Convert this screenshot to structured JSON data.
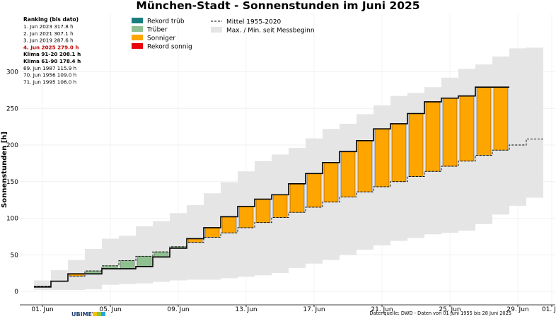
{
  "chart_data": {
    "type": "bar",
    "title": "München-Stadt - Sonnenstunden im Juni 2025",
    "ylabel": "Sonnenstunden [h]",
    "ylim": [
      -18,
      340
    ],
    "yticks": [
      0,
      50,
      100,
      150,
      200,
      250,
      300
    ],
    "xticks": [
      {
        "day": 1,
        "label": "01. Jun"
      },
      {
        "day": 5,
        "label": "05. Jun"
      },
      {
        "day": 9,
        "label": "09. Jun"
      },
      {
        "day": 13,
        "label": "13. Jun"
      },
      {
        "day": 17,
        "label": "17. Jun"
      },
      {
        "day": 21,
        "label": "21. Jun"
      },
      {
        "day": 25,
        "label": "25. Jun"
      },
      {
        "day": 29,
        "label": "29. Jun"
      },
      {
        "day": 31,
        "label": "01. Jul"
      }
    ],
    "days": [
      1,
      2,
      3,
      4,
      5,
      6,
      7,
      8,
      9,
      10,
      11,
      12,
      13,
      14,
      15,
      16,
      17,
      18,
      19,
      20,
      21,
      22,
      23,
      24,
      25,
      26,
      27,
      28,
      29,
      30
    ],
    "cumulative_2025": [
      6,
      14,
      24,
      24,
      31,
      31,
      34,
      47,
      59,
      72,
      87,
      102,
      116,
      126,
      132,
      147,
      161,
      176,
      191,
      206,
      222,
      229,
      243,
      259,
      264,
      267,
      279,
      279
    ],
    "mean_1955_2020": [
      7,
      14,
      21,
      28,
      35,
      42,
      48,
      54,
      61,
      67,
      74,
      80,
      87,
      94,
      101,
      108,
      115,
      122,
      129,
      136,
      143,
      150,
      157,
      164,
      171,
      178,
      186,
      193,
      200,
      208
    ],
    "max_since_start": [
      15,
      29,
      43,
      58,
      72,
      76,
      89,
      96,
      107,
      118,
      134,
      149,
      164,
      178,
      187,
      196,
      209,
      222,
      229,
      242,
      254,
      267,
      271,
      279,
      292,
      304,
      310,
      321,
      332,
      333
    ],
    "min_since_start": [
      2,
      2,
      2,
      3,
      9,
      10,
      11,
      13,
      15,
      16,
      16,
      18,
      20,
      22,
      25,
      32,
      38,
      43,
      50,
      57,
      63,
      69,
      73,
      78,
      80,
      83,
      92,
      105,
      117,
      128
    ],
    "legend": {
      "left": [
        {
          "label": "Rekord trüb",
          "color": "#1a7e7e"
        },
        {
          "label": "Trüber",
          "color": "#8fc08f"
        },
        {
          "label": "Sonniger",
          "color": "#ffa500"
        },
        {
          "label": "Rekord sonnig",
          "color": "#e8000b"
        }
      ],
      "right": [
        {
          "label": "Mittel 1955-2020",
          "style": "dashed"
        },
        {
          "label": "Max. / Min. seit Messbeginn",
          "color": "#e5e5e5"
        }
      ]
    },
    "ranking": {
      "heading": "Ranking (bis dato)",
      "entries": [
        {
          "text": "1.  Jun 2023  317.8 h",
          "style": "normal"
        },
        {
          "text": "2.  Jun 2021  307.1 h",
          "style": "normal"
        },
        {
          "text": "3.  Jun 2019  287.6 h",
          "style": "normal"
        },
        {
          "text": "4.  Jun 2025  279.0 h",
          "style": "highlight"
        },
        {
          "text": "Klima 91-20 208.1 h",
          "style": "bold"
        },
        {
          "text": "Klima 61-90 178.4 h",
          "style": "bold"
        },
        {
          "text": "69.  Jun 1987  115.9 h",
          "style": "normal"
        },
        {
          "text": "70.  Jun 1956  109.0 h",
          "style": "normal"
        },
        {
          "text": "71.  Jun 1995  106.0 h",
          "style": "normal"
        }
      ]
    },
    "colors": {
      "above_mean": "#ffa500",
      "below_mean": "#8fc08f",
      "envelope": "#e5e5e5",
      "line": "#000000"
    }
  },
  "footer": {
    "source": "Datenquelle: DWD - Daten von 01 Juni 1955 bis 28 Juni 2025",
    "brand": "UBIMET"
  }
}
